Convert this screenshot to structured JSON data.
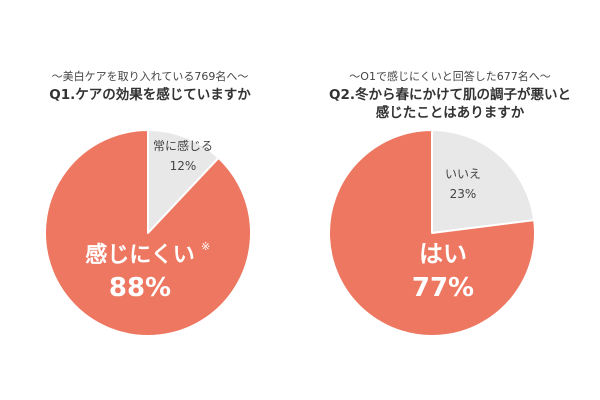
{
  "colors": {
    "major": "#ED7760",
    "minor": "#E8E8E8",
    "edge": "#FFFFFF"
  },
  "chart_data": [
    {
      "type": "pie",
      "subtitle": "〜美白ケアを取り入れている769名へ〜",
      "title_lines": [
        "Q1.ケアの効果を感じていますか"
      ],
      "slices": [
        {
          "label": "常に感じる",
          "value": 12,
          "value_text": "12%",
          "color": "#E8E8E8"
        },
        {
          "label": "感じにくい",
          "note": "※",
          "value": 88,
          "value_text": "88%",
          "color": "#ED7760"
        }
      ]
    },
    {
      "type": "pie",
      "subtitle": "〜O1で感じにくいと回答した677名へ〜",
      "title_lines": [
        "Q2.冬から春にかけて肌の調子が悪いと",
        "感じたことはありますか"
      ],
      "slices": [
        {
          "label": "いいえ",
          "value": 23,
          "value_text": "23%",
          "color": "#E8E8E8"
        },
        {
          "label": "はい",
          "value": 77,
          "value_text": "77%",
          "color": "#ED7760"
        }
      ]
    }
  ]
}
